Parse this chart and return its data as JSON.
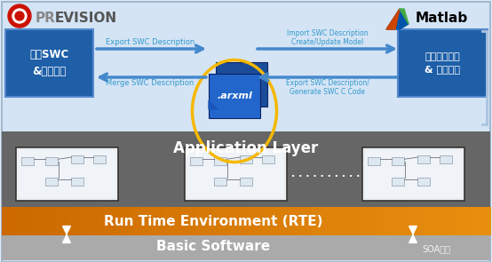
{
  "bg_color": "#e8eef5",
  "top_section_bg": "#d4e4f5",
  "app_layer_bg": "#666666",
  "rte_bg_left": "#d4820a",
  "rte_bg_right": "#e8a020",
  "basic_sw_bg": "#aaaaaa",
  "blue_box_color": "#1e5fa8",
  "blue_box_edge": "#5588cc",
  "title": "Application Layer",
  "rte_title": "Run Time Environment (RTE)",
  "basic_title": "Basic Software",
  "left_box_text": "定义SWC\n&内部行为",
  "right_box_text": "内部行为建模\n& 代码生成",
  "arxml_text": ".arxml",
  "export_text": "Export SWC Description",
  "merge_text": "Merge SWC Description",
  "import_text": "Import SWC Description\nCreate/Update Model",
  "export2_text": "Export SWC Description/\nGenerate SWC C Code",
  "dots_text": ". . . . . . . . . .",
  "watermark": "SOA开发",
  "preevision_pre": "PRE",
  "preevision_rest": "EVISION",
  "matlab_text": "Matlab",
  "outer_border_color": "#a0b8d0",
  "arrow_color": "#3399cc",
  "arrow_fill": "#4488cc"
}
